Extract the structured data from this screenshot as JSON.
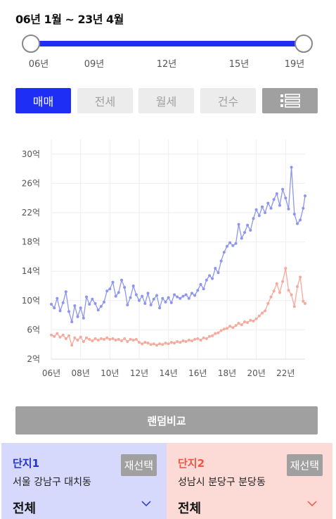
{
  "period": {
    "title": "06년 1월 ~ 23년 4월"
  },
  "slider": {
    "ticks": [
      "06년",
      "09년",
      "12년",
      "15년",
      "19년"
    ]
  },
  "tabs": {
    "sale": "매매",
    "jeonse": "전세",
    "monthly": "월세",
    "count": "건수",
    "list_icon": "list-icon"
  },
  "random_compare": "랜덤비교",
  "complex1": {
    "label": "단지1",
    "reselect": "재선택",
    "address": "서울 강남구 대치동",
    "selection": "전체",
    "chevron": "chevron-down-icon",
    "color": "#2233cc"
  },
  "complex2": {
    "label": "단지2",
    "reselect": "재선택",
    "address": "성남시 분당구 분당동",
    "selection": "전체",
    "chevron": "chevron-down-icon",
    "color": "#ee5544"
  },
  "colors": {
    "accent": "#1f2ef5",
    "series1": "#8d96ee",
    "series2": "#f5aa9c",
    "button_gray": "#a0a0a0"
  },
  "chart_data": {
    "type": "line",
    "x_ticks": [
      "06년",
      "08년",
      "10년",
      "12년",
      "14년",
      "16년",
      "18년",
      "20년",
      "22년"
    ],
    "y_ticks": [
      "2억",
      "6억",
      "10억",
      "14억",
      "18억",
      "22억",
      "26억",
      "30억"
    ],
    "ylim": [
      2,
      32
    ],
    "xlim": [
      2006.0,
      2023.33
    ],
    "grid": true,
    "series": [
      {
        "color": "#8d96ee",
        "points": [
          [
            2006.0,
            9.5
          ],
          [
            2006.2,
            9.0
          ],
          [
            2006.4,
            10.3
          ],
          [
            2006.6,
            8.6
          ],
          [
            2006.8,
            9.7
          ],
          [
            2007.0,
            11.2
          ],
          [
            2007.2,
            8.5
          ],
          [
            2007.4,
            7.1
          ],
          [
            2007.6,
            9.3
          ],
          [
            2007.8,
            7.8
          ],
          [
            2008.0,
            9.0
          ],
          [
            2008.2,
            7.6
          ],
          [
            2008.4,
            10.5
          ],
          [
            2008.6,
            9.5
          ],
          [
            2008.8,
            10.2
          ],
          [
            2009.0,
            9.6
          ],
          [
            2009.2,
            8.7
          ],
          [
            2009.4,
            9.2
          ],
          [
            2009.6,
            9.8
          ],
          [
            2009.8,
            11.3
          ],
          [
            2010.0,
            11.6
          ],
          [
            2010.2,
            12.5
          ],
          [
            2010.4,
            10.6
          ],
          [
            2010.6,
            11.1
          ],
          [
            2010.8,
            12.8
          ],
          [
            2011.0,
            11.8
          ],
          [
            2011.2,
            9.4
          ],
          [
            2011.4,
            10.4
          ],
          [
            2011.6,
            12.0
          ],
          [
            2011.8,
            10.8
          ],
          [
            2012.0,
            10.0
          ],
          [
            2012.2,
            10.6
          ],
          [
            2012.4,
            9.6
          ],
          [
            2012.6,
            11.0
          ],
          [
            2012.8,
            9.4
          ],
          [
            2013.0,
            10.2
          ],
          [
            2013.2,
            10.7
          ],
          [
            2013.4,
            9.0
          ],
          [
            2013.6,
            10.3
          ],
          [
            2013.8,
            9.8
          ],
          [
            2014.0,
            10.4
          ],
          [
            2014.2,
            9.7
          ],
          [
            2014.4,
            10.8
          ],
          [
            2014.6,
            10.5
          ],
          [
            2014.8,
            10.3
          ],
          [
            2015.0,
            10.6
          ],
          [
            2015.2,
            10.8
          ],
          [
            2015.4,
            10.3
          ],
          [
            2015.6,
            11.0
          ],
          [
            2015.8,
            10.7
          ],
          [
            2016.0,
            11.4
          ],
          [
            2016.2,
            12.2
          ],
          [
            2016.4,
            11.6
          ],
          [
            2016.6,
            12.8
          ],
          [
            2016.8,
            13.4
          ],
          [
            2017.0,
            13.0
          ],
          [
            2017.2,
            14.4
          ],
          [
            2017.4,
            13.8
          ],
          [
            2017.6,
            15.4
          ],
          [
            2017.8,
            16.6
          ],
          [
            2018.0,
            17.4
          ],
          [
            2018.2,
            17.9
          ],
          [
            2018.4,
            17.5
          ],
          [
            2018.6,
            17.8
          ],
          [
            2018.8,
            20.4
          ],
          [
            2019.0,
            18.5
          ],
          [
            2019.2,
            19.3
          ],
          [
            2019.4,
            20.3
          ],
          [
            2019.6,
            19.6
          ],
          [
            2019.8,
            21.2
          ],
          [
            2020.0,
            22.4
          ],
          [
            2020.2,
            21.6
          ],
          [
            2020.4,
            22.8
          ],
          [
            2020.6,
            22.0
          ],
          [
            2020.8,
            23.3
          ],
          [
            2021.0,
            22.6
          ],
          [
            2021.2,
            23.8
          ],
          [
            2021.4,
            24.6
          ],
          [
            2021.6,
            23.0
          ],
          [
            2021.8,
            25.2
          ],
          [
            2022.0,
            24.0
          ],
          [
            2022.2,
            22.5
          ],
          [
            2022.4,
            28.2
          ],
          [
            2022.6,
            21.8
          ],
          [
            2022.8,
            20.5
          ],
          [
            2023.0,
            21.0
          ],
          [
            2023.2,
            22.6
          ],
          [
            2023.33,
            24.3
          ]
        ]
      },
      {
        "color": "#f5aa9c",
        "points": [
          [
            2006.0,
            5.3
          ],
          [
            2006.2,
            5.1
          ],
          [
            2006.4,
            5.5
          ],
          [
            2006.6,
            5.0
          ],
          [
            2006.8,
            5.3
          ],
          [
            2007.0,
            4.8
          ],
          [
            2007.2,
            5.2
          ],
          [
            2007.4,
            3.9
          ],
          [
            2007.6,
            4.9
          ],
          [
            2007.8,
            4.6
          ],
          [
            2008.0,
            5.0
          ],
          [
            2008.2,
            4.4
          ],
          [
            2008.4,
            4.9
          ],
          [
            2008.6,
            4.7
          ],
          [
            2008.8,
            4.5
          ],
          [
            2009.0,
            4.8
          ],
          [
            2009.2,
            4.6
          ],
          [
            2009.4,
            4.8
          ],
          [
            2009.6,
            4.7
          ],
          [
            2009.8,
            4.9
          ],
          [
            2010.0,
            4.7
          ],
          [
            2010.2,
            4.8
          ],
          [
            2010.4,
            4.6
          ],
          [
            2010.6,
            4.7
          ],
          [
            2010.8,
            4.5
          ],
          [
            2011.0,
            4.8
          ],
          [
            2011.2,
            4.4
          ],
          [
            2011.4,
            4.7
          ],
          [
            2011.6,
            4.6
          ],
          [
            2011.8,
            4.7
          ],
          [
            2012.0,
            4.3
          ],
          [
            2012.2,
            4.1
          ],
          [
            2012.4,
            4.3
          ],
          [
            2012.6,
            4.2
          ],
          [
            2012.8,
            4.0
          ],
          [
            2013.0,
            4.1
          ],
          [
            2013.2,
            3.9
          ],
          [
            2013.4,
            4.1
          ],
          [
            2013.6,
            4.0
          ],
          [
            2013.8,
            4.2
          ],
          [
            2014.0,
            4.1
          ],
          [
            2014.2,
            4.3
          ],
          [
            2014.4,
            4.2
          ],
          [
            2014.6,
            4.4
          ],
          [
            2014.8,
            4.3
          ],
          [
            2015.0,
            4.5
          ],
          [
            2015.2,
            4.4
          ],
          [
            2015.4,
            4.6
          ],
          [
            2015.6,
            4.5
          ],
          [
            2015.8,
            4.7
          ],
          [
            2016.0,
            4.8
          ],
          [
            2016.2,
            4.6
          ],
          [
            2016.4,
            4.9
          ],
          [
            2016.6,
            4.8
          ],
          [
            2016.8,
            5.1
          ],
          [
            2017.0,
            5.2
          ],
          [
            2017.2,
            5.5
          ],
          [
            2017.4,
            5.6
          ],
          [
            2017.6,
            5.9
          ],
          [
            2017.8,
            6.1
          ],
          [
            2018.0,
            6.2
          ],
          [
            2018.2,
            6.5
          ],
          [
            2018.4,
            6.3
          ],
          [
            2018.6,
            6.6
          ],
          [
            2018.8,
            6.9
          ],
          [
            2019.0,
            6.7
          ],
          [
            2019.2,
            7.1
          ],
          [
            2019.4,
            7.0
          ],
          [
            2019.6,
            7.3
          ],
          [
            2019.8,
            7.2
          ],
          [
            2020.0,
            7.5
          ],
          [
            2020.2,
            7.9
          ],
          [
            2020.4,
            8.3
          ],
          [
            2020.6,
            8.6
          ],
          [
            2020.8,
            9.6
          ],
          [
            2021.0,
            10.5
          ],
          [
            2021.2,
            11.3
          ],
          [
            2021.4,
            12.3
          ],
          [
            2021.6,
            11.1
          ],
          [
            2021.8,
            12.6
          ],
          [
            2022.0,
            14.4
          ],
          [
            2022.2,
            11.4
          ],
          [
            2022.4,
            10.8
          ],
          [
            2022.6,
            9.2
          ],
          [
            2022.8,
            11.9
          ],
          [
            2023.0,
            13.2
          ],
          [
            2023.2,
            9.9
          ],
          [
            2023.33,
            9.6
          ]
        ]
      }
    ]
  }
}
